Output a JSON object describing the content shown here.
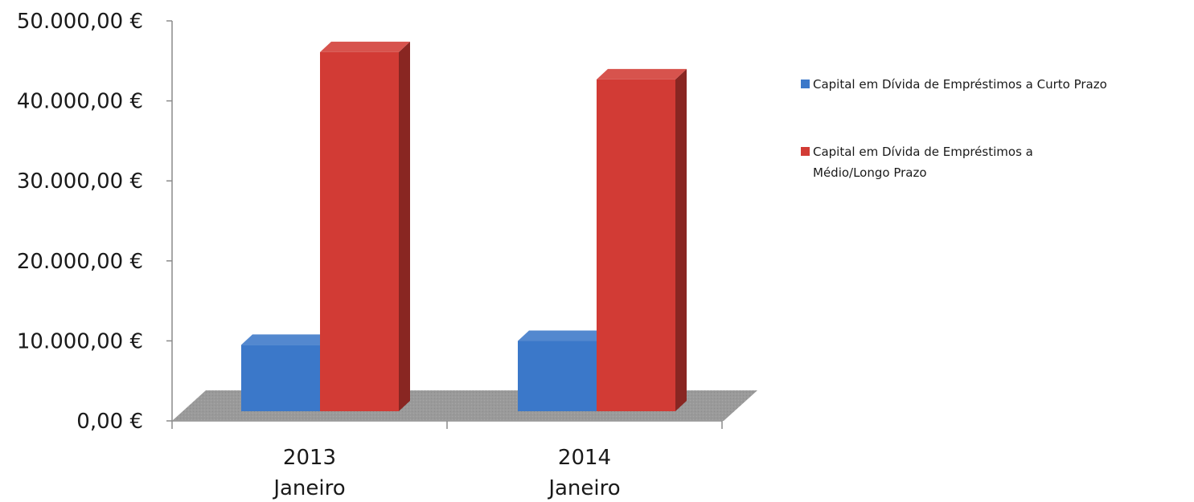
{
  "chart_data": {
    "type": "bar",
    "style": "3d-clustered-column",
    "categories": [
      "2013\nJaneiro",
      "2014\nJaneiro"
    ],
    "series": [
      {
        "name": "Capital em Dívida de Empréstimos a Curto Prazo",
        "values": [
          8500,
          9000
        ],
        "color": "#3b78c9"
      },
      {
        "name": "Capital em Dívida de Empréstimos a Médio/Longo Prazo",
        "values": [
          46000,
          42500
        ],
        "color": "#d23b35"
      }
    ],
    "y_ticks": [
      "0,00 €",
      "10.000,00 €",
      "20.000,00 €",
      "30.000,00 €",
      "40.000,00 €",
      "50.000,00 €"
    ],
    "ylim": [
      0,
      50000
    ],
    "grid": false,
    "legend": "right",
    "floor_color": "#9a9a9a",
    "title": "",
    "xlabel": "",
    "ylabel": ""
  }
}
